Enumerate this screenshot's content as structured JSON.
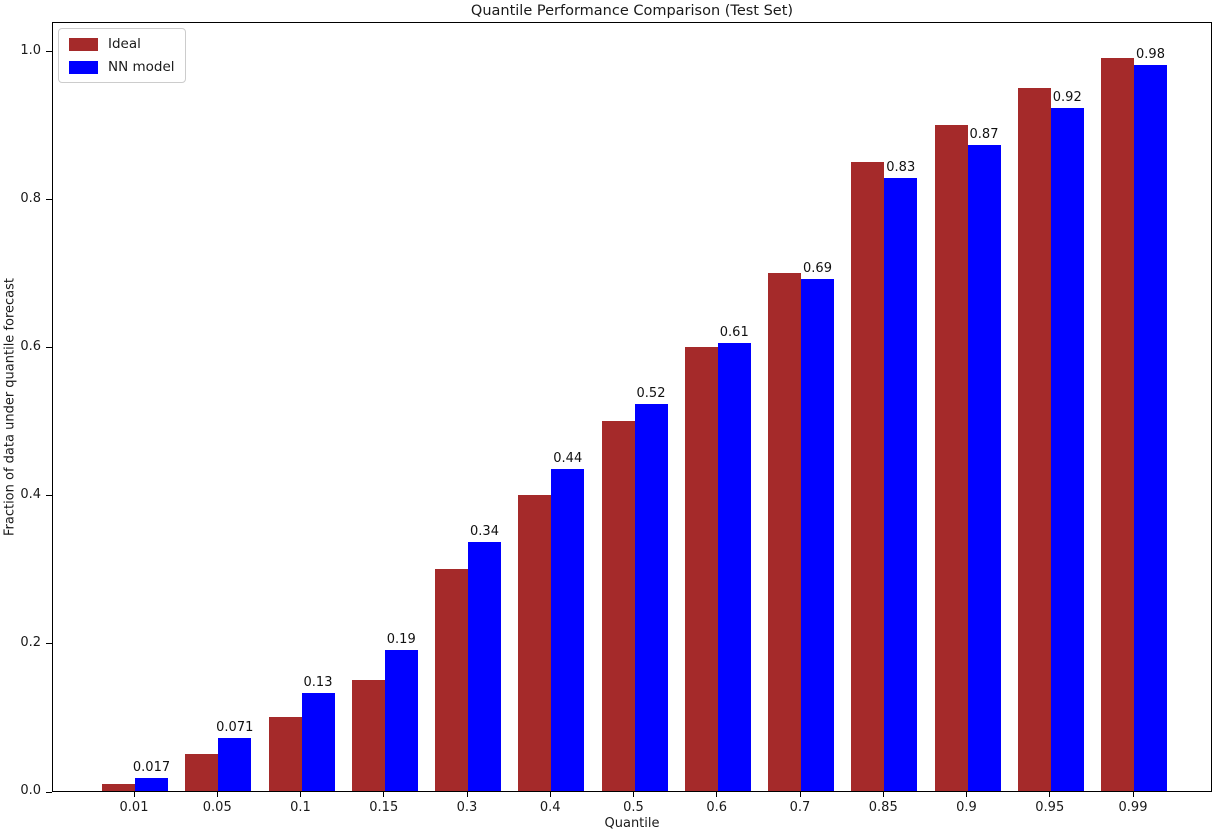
{
  "chart_data": {
    "type": "bar",
    "title": "Quantile Performance Comparison (Test Set)",
    "xlabel": "Quantile",
    "ylabel": "Fraction of data under quantile forecast",
    "categories": [
      "0.01",
      "0.05",
      "0.1",
      "0.15",
      "0.3",
      "0.4",
      "0.5",
      "0.6",
      "0.7",
      "0.85",
      "0.9",
      "0.95",
      "0.99"
    ],
    "series": [
      {
        "name": "Ideal",
        "color": "#A52A2A",
        "values": [
          0.01,
          0.05,
          0.1,
          0.15,
          0.3,
          0.4,
          0.5,
          0.6,
          0.7,
          0.85,
          0.9,
          0.95,
          0.99
        ]
      },
      {
        "name": "NN model",
        "color": "#0000FF",
        "values": [
          0.017,
          0.071,
          0.133,
          0.19,
          0.337,
          0.435,
          0.523,
          0.605,
          0.691,
          0.828,
          0.873,
          0.922,
          0.98
        ],
        "labels": [
          "0.017",
          "0.071",
          "0.13",
          "0.19",
          "0.34",
          "0.44",
          "0.52",
          "0.61",
          "0.69",
          "0.83",
          "0.87",
          "0.92",
          "0.98"
        ]
      }
    ],
    "yticks": [
      "0.0",
      "0.2",
      "0.4",
      "0.6",
      "0.8",
      "1.0"
    ],
    "ylim": [
      0,
      1.04
    ],
    "legend_position": "upper left",
    "grid": false,
    "background_color": "#ffffff",
    "text_color": "#1a1a1a"
  }
}
